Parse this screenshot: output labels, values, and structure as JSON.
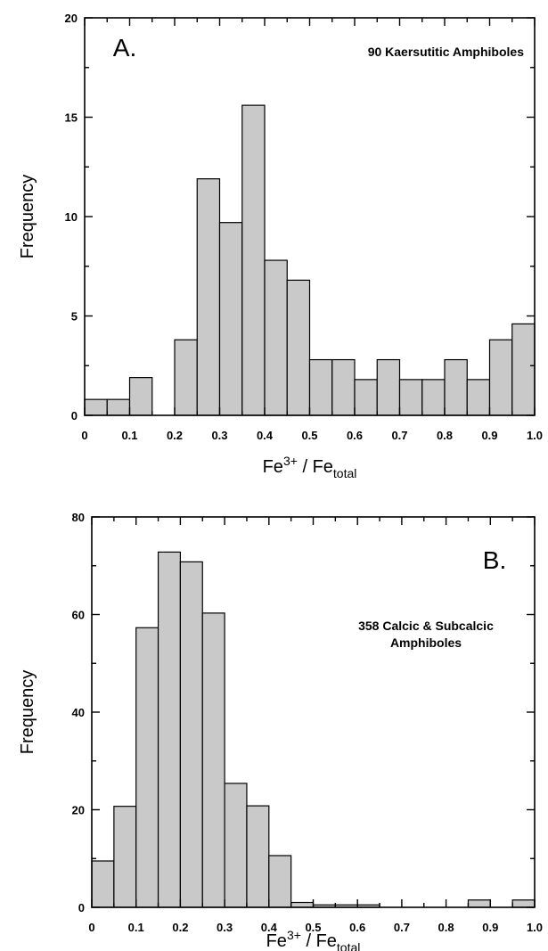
{
  "chart_data": [
    {
      "type": "bar",
      "panel_label": "A.",
      "annotation": [
        "90  Kaersutitic Amphiboles"
      ],
      "xlabel": "Fe3+ / Fetotal",
      "ylabel": "Frequency",
      "xlim": [
        0,
        1.0
      ],
      "ylim": [
        0,
        20
      ],
      "x_ticks": [
        "0",
        "0.1",
        "0.2",
        "0.3",
        "0.4",
        "0.5",
        "0.6",
        "0.7",
        "0.8",
        "0.9",
        "1.0"
      ],
      "y_ticks": [
        "0",
        "5",
        "10",
        "15",
        "20"
      ],
      "bin_width": 0.05,
      "bin_starts": [
        0,
        0.05,
        0.1,
        0.15,
        0.2,
        0.25,
        0.3,
        0.35,
        0.4,
        0.45,
        0.5,
        0.55,
        0.6,
        0.65,
        0.7,
        0.75,
        0.8,
        0.85,
        0.9,
        0.95
      ],
      "values": [
        0.8,
        0.8,
        1.9,
        0,
        3.8,
        11.9,
        9.7,
        15.6,
        7.8,
        6.8,
        2.8,
        2.8,
        1.8,
        2.8,
        1.8,
        1.8,
        2.8,
        1.8,
        3.8,
        4.6
      ],
      "bar_color": "#c9c9c9"
    },
    {
      "type": "bar",
      "panel_label": "B.",
      "annotation": [
        "358  Calcic & Subcalcic",
        "Amphiboles"
      ],
      "xlabel": "Fe3+ / Fetotal",
      "ylabel": "Frequency",
      "xlim": [
        0,
        1.0
      ],
      "ylim": [
        0,
        80
      ],
      "x_ticks": [
        "0",
        "0.1",
        "0.2",
        "0.3",
        "0.4",
        "0.5",
        "0.6",
        "0.7",
        "0.8",
        "0.9",
        "1.0"
      ],
      "y_ticks": [
        "0",
        "20",
        "40",
        "60",
        "80"
      ],
      "bin_width": 0.05,
      "bin_starts": [
        0,
        0.05,
        0.1,
        0.15,
        0.2,
        0.25,
        0.3,
        0.35,
        0.4,
        0.45,
        0.5,
        0.55,
        0.6,
        0.65,
        0.7,
        0.75,
        0.8,
        0.85,
        0.9,
        0.95
      ],
      "values": [
        9.5,
        20.7,
        57.3,
        72.8,
        70.8,
        60.3,
        25.4,
        20.8,
        10.6,
        1,
        0.5,
        0.5,
        0.5,
        0,
        0,
        0,
        0,
        1.5,
        0,
        1.5
      ],
      "bar_color": "#c9c9c9"
    }
  ]
}
